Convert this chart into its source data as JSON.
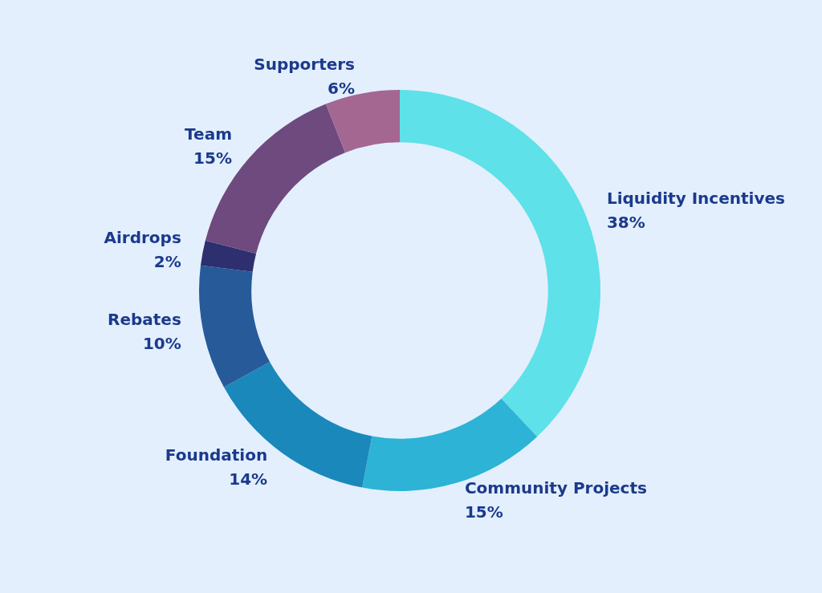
{
  "chart_data": {
    "type": "donut",
    "categories": [
      "Liquidity Incentives",
      "Community Projects",
      "Foundation",
      "Rebates",
      "Airdrops",
      "Team",
      "Supporters"
    ],
    "values": [
      38,
      15,
      14,
      10,
      2,
      15,
      6
    ],
    "value_labels": [
      "38%",
      "15%",
      "14%",
      "10%",
      "2%",
      "15%",
      "6%"
    ],
    "colors": [
      "#5ee1e8",
      "#2db3d6",
      "#1a88bb",
      "#265a99",
      "#2e2f6e",
      "#6e4a7e",
      "#a36792"
    ],
    "legend": false
  }
}
